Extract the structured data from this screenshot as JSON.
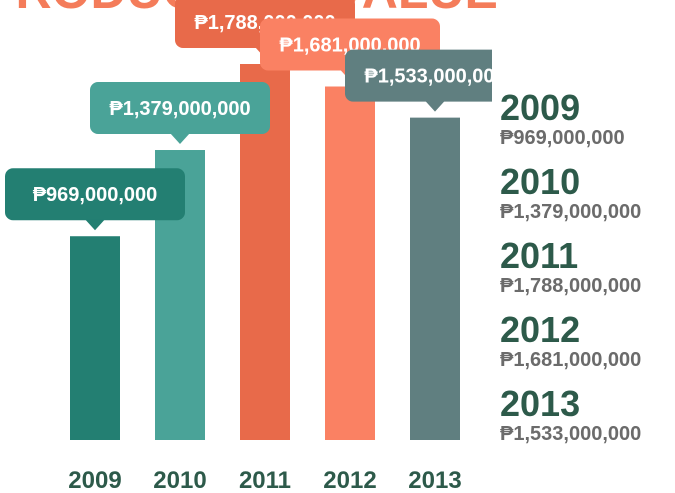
{
  "chart_data": {
    "type": "bar",
    "title": "PRODUCTION VALUE",
    "categories": [
      "2009",
      "2010",
      "2011",
      "2012",
      "2013"
    ],
    "values": [
      969000000,
      1379000000,
      1788000000,
      1681000000,
      1533000000
    ],
    "value_labels": [
      "₱969,000,000",
      "₱1,379,000,000",
      "₱1,788,000,000",
      "₱1,681,000,000",
      "₱1,533,000,000"
    ],
    "colors": [
      "#237f72",
      "#4aa398",
      "#e86a4a",
      "#fa8163",
      "#607f80"
    ]
  }
}
